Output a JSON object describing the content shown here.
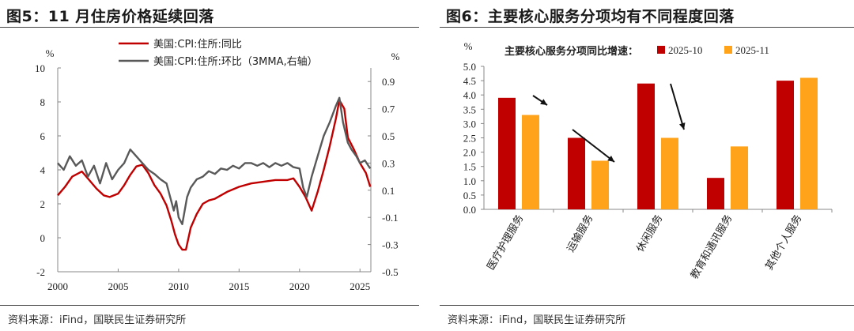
{
  "chart_data": [
    {
      "type": "line",
      "title": "图5：11 月住房价格延续回落",
      "source": "资料来源：iFind，国联民生证券研究所",
      "ylabel_left": "%",
      "ylabel_right": "%",
      "x_ticks": [
        "2000",
        "2005",
        "2010",
        "2015",
        "2020",
        "2025"
      ],
      "xlim": [
        2000,
        2025.9
      ],
      "ylim_left": [
        -2,
        10
      ],
      "y_ticks_left": [
        "10",
        "8",
        "6",
        "4",
        "2",
        "0",
        "-2"
      ],
      "ylim_right": [
        -0.5,
        1.0
      ],
      "y_ticks_right": [
        "0.9",
        "0.7",
        "0.5",
        "0.3",
        "0.1",
        "-0.1",
        "-0.3",
        "-0.5"
      ],
      "grid": false,
      "legend_position": "top",
      "series": [
        {
          "name": "美国:CPI:住所:同比",
          "axis": "left",
          "color": "#c00000",
          "x": [
            2000,
            2000.6,
            2001.2,
            2002,
            2002.6,
            2003.2,
            2003.8,
            2004.3,
            2005,
            2005.5,
            2006,
            2006.5,
            2007,
            2007.5,
            2008,
            2008.5,
            2009,
            2009.4,
            2009.7,
            2010,
            2010.3,
            2010.6,
            2011,
            2011.5,
            2012,
            2012.5,
            2013,
            2014,
            2015,
            2016,
            2017,
            2018,
            2019,
            2019.5,
            2020,
            2020.5,
            2021,
            2021.5,
            2022,
            2022.5,
            2023,
            2023.3,
            2023.7,
            2024,
            2024.5,
            2025,
            2025.5,
            2025.85
          ],
          "values": [
            2.5,
            3.0,
            3.6,
            3.9,
            3.4,
            2.9,
            2.5,
            2.4,
            2.6,
            3.1,
            3.7,
            4.2,
            4.3,
            3.8,
            3.1,
            2.6,
            1.9,
            1.0,
            0.2,
            -0.4,
            -0.7,
            -0.7,
            0.6,
            1.4,
            2.0,
            2.2,
            2.3,
            2.7,
            3.0,
            3.2,
            3.3,
            3.4,
            3.4,
            3.5,
            3.0,
            2.4,
            1.6,
            2.7,
            4.0,
            5.4,
            7.0,
            8.1,
            7.6,
            5.9,
            5.2,
            4.4,
            3.8,
            3.0
          ]
        },
        {
          "name": "美国:CPI:住所:环比（3MMA,右轴）",
          "axis": "right",
          "color": "#595959",
          "x": [
            2000,
            2000.5,
            2001,
            2001.5,
            2002,
            2002.5,
            2003,
            2003.5,
            2004,
            2004.5,
            2005,
            2005.5,
            2006,
            2006.5,
            2007,
            2007.5,
            2008,
            2008.5,
            2009,
            2009.3,
            2009.6,
            2009.8,
            2010,
            2010.3,
            2010.7,
            2011,
            2011.5,
            2012,
            2012.5,
            2013,
            2013.5,
            2014,
            2014.5,
            2015,
            2015.5,
            2016,
            2016.5,
            2017,
            2017.5,
            2018,
            2018.5,
            2019,
            2019.5,
            2020,
            2020.3,
            2020.6,
            2021,
            2021.5,
            2022,
            2022.5,
            2023,
            2023.3,
            2023.6,
            2024,
            2024.3,
            2024.7,
            2025,
            2025.4,
            2025.85
          ],
          "values": [
            0.3,
            0.25,
            0.35,
            0.28,
            0.32,
            0.2,
            0.28,
            0.15,
            0.3,
            0.18,
            0.25,
            0.3,
            0.4,
            0.35,
            0.3,
            0.25,
            0.22,
            0.18,
            0.15,
            0.05,
            -0.05,
            0.02,
            -0.1,
            -0.15,
            0.05,
            0.12,
            0.18,
            0.2,
            0.24,
            0.22,
            0.26,
            0.25,
            0.28,
            0.26,
            0.3,
            0.3,
            0.28,
            0.3,
            0.27,
            0.3,
            0.28,
            0.3,
            0.27,
            0.26,
            0.12,
            0.05,
            0.2,
            0.35,
            0.5,
            0.6,
            0.72,
            0.78,
            0.6,
            0.45,
            0.4,
            0.35,
            0.3,
            0.32,
            0.26
          ]
        }
      ]
    },
    {
      "type": "bar",
      "title": "图6：主要核心服务分项均有不同程度回落",
      "source": "资料来源：iFind，国联民生证券研究所",
      "ylabel": "%",
      "inner_title": "主要核心服务分项同比增速：",
      "categories": [
        "医疗护理服务",
        "运输服务",
        "休闲服务",
        "教育和通讯服务",
        "其他个人服务"
      ],
      "ylim": [
        0,
        5.0
      ],
      "y_ticks": [
        "5.0",
        "4.5",
        "4.0",
        "3.5",
        "3.0",
        "2.5",
        "2.0",
        "1.5",
        "1.0",
        "0.5",
        "0.0"
      ],
      "grid": false,
      "legend_position": "top-right",
      "series": [
        {
          "name": "2025-10",
          "color": "#c00000",
          "values": [
            3.9,
            2.5,
            4.4,
            1.1,
            4.5
          ]
        },
        {
          "name": "2025-11",
          "color": "#ffa31a",
          "values": [
            3.3,
            1.7,
            2.5,
            2.2,
            4.6
          ]
        }
      ]
    }
  ]
}
